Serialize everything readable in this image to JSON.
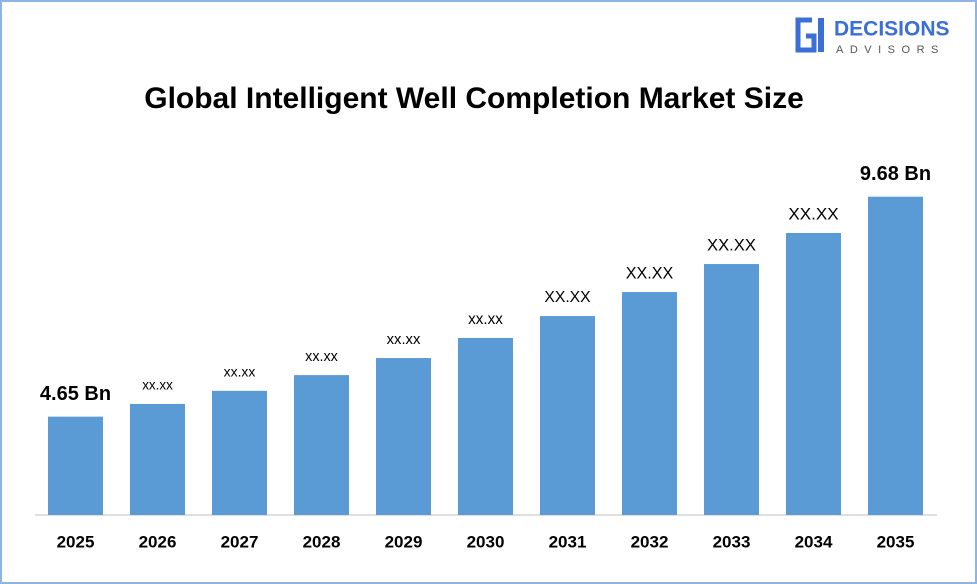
{
  "logo": {
    "name": "DECISIONS",
    "tagline": "ADVISORS"
  },
  "chart_data": {
    "type": "bar",
    "title": "Global Intelligent Well Completion Market Size",
    "categories": [
      "2025",
      "2026",
      "2027",
      "2028",
      "2029",
      "2030",
      "2031",
      "2032",
      "2033",
      "2034",
      "2035"
    ],
    "values": [
      4.65,
      4.94,
      5.24,
      5.6,
      5.99,
      6.45,
      6.95,
      7.5,
      8.14,
      8.85,
      9.68
    ],
    "value_labels": [
      "4.65 Bn",
      "xx.xx",
      "xx.xx",
      "xx.xx",
      "xx.xx",
      "xx.xx",
      "XX.XX",
      "XX.XX",
      "XX.XX",
      "XX.XX",
      "9.68 Bn"
    ],
    "color": "#5b9bd5",
    "ylim": [
      2.4,
      11
    ]
  }
}
